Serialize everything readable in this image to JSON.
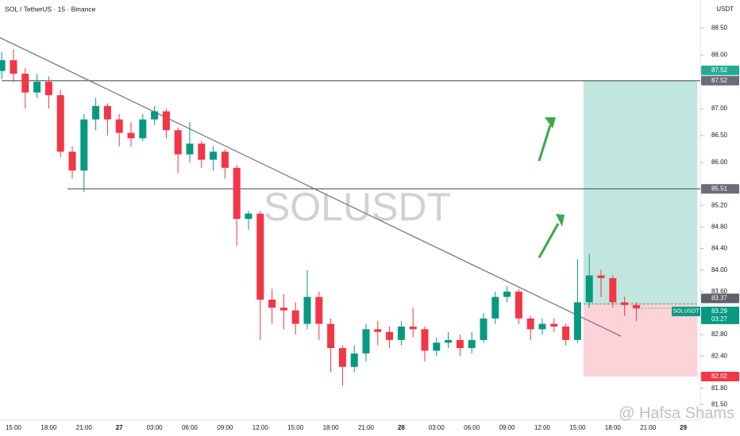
{
  "chart_data": {
    "type": "candlestick",
    "title": "SOL / TetherUS · 15 · Binance",
    "currency": "USDT",
    "watermark": "SOLUSDT",
    "credit": "@ Hafsa Shams",
    "categories": [
      null,
      "15:00",
      null,
      null,
      "18:00",
      null,
      null,
      "21:00",
      null,
      null,
      "27",
      null,
      null,
      "03:00",
      null,
      null,
      "06:00",
      null,
      null,
      "09:00",
      null,
      null,
      "12:00",
      null,
      null,
      "15:00",
      null,
      null,
      "18:00",
      null,
      null,
      "21:00",
      null,
      null,
      "28",
      null,
      null,
      "03:00",
      null,
      null,
      "06:00",
      null,
      null,
      "09:00",
      null,
      null,
      "12:00",
      null,
      null,
      "15:00",
      null,
      null,
      "18:00",
      null,
      null,
      "21:00",
      null,
      null,
      "29"
    ],
    "open": [
      87.7,
      87.9,
      87.65,
      87.3,
      87.5,
      87.25,
      86.2,
      85.85,
      86.8,
      87.05,
      86.8,
      86.55,
      86.45,
      86.8,
      86.95,
      86.6,
      86.15,
      86.35,
      86.05,
      86.2,
      85.9,
      84.95,
      85.05,
      83.45,
      83.3,
      83.25,
      83.0,
      83.5,
      83.0,
      82.55,
      82.2,
      82.45,
      82.9,
      82.85,
      82.7,
      82.95,
      82.9,
      82.5,
      82.65,
      82.7,
      82.55,
      82.7,
      83.1,
      83.5,
      83.6,
      83.1,
      82.9,
      83.0,
      82.95,
      82.7,
      83.4,
      83.9,
      83.85,
      83.4,
      83.35,
      null,
      null,
      null,
      null
    ],
    "high": [
      88.05,
      88.1,
      87.75,
      87.65,
      87.6,
      87.35,
      86.3,
      86.9,
      87.2,
      87.1,
      86.9,
      86.75,
      86.9,
      87.05,
      87.0,
      86.65,
      86.75,
      86.4,
      86.3,
      86.25,
      85.95,
      85.1,
      85.1,
      83.65,
      83.55,
      83.4,
      84.0,
      83.6,
      83.1,
      82.6,
      82.6,
      83.0,
      83.05,
      82.95,
      83.05,
      83.3,
      82.95,
      82.75,
      82.85,
      82.8,
      82.85,
      83.2,
      83.6,
      83.7,
      83.65,
      83.15,
      83.1,
      83.1,
      83.0,
      84.2,
      84.3,
      84.0,
      83.9,
      83.5,
      83.4,
      null,
      null,
      null,
      null
    ],
    "low": [
      87.55,
      87.5,
      87.0,
      87.2,
      87.0,
      86.1,
      85.7,
      85.45,
      86.6,
      86.5,
      86.3,
      86.3,
      86.4,
      86.7,
      86.45,
      85.8,
      86.0,
      85.9,
      85.85,
      85.7,
      84.45,
      84.75,
      82.7,
      83.0,
      82.9,
      82.8,
      82.9,
      82.7,
      82.1,
      81.85,
      82.1,
      82.3,
      82.6,
      82.55,
      82.6,
      82.75,
      82.3,
      82.4,
      82.55,
      82.4,
      82.45,
      82.65,
      83.0,
      83.4,
      83.0,
      82.7,
      82.8,
      82.85,
      82.6,
      82.65,
      83.3,
      83.5,
      83.3,
      83.15,
      83.05,
      null,
      null,
      null,
      null
    ],
    "close": [
      87.9,
      87.65,
      87.3,
      87.5,
      87.25,
      86.2,
      85.85,
      86.8,
      87.05,
      86.8,
      86.55,
      86.45,
      86.8,
      86.95,
      86.6,
      86.15,
      86.35,
      86.05,
      86.2,
      85.9,
      84.95,
      85.05,
      83.45,
      83.3,
      83.25,
      83.0,
      83.5,
      83.0,
      82.55,
      82.2,
      82.45,
      82.9,
      82.85,
      82.7,
      82.95,
      82.9,
      82.5,
      82.65,
      82.7,
      82.55,
      82.7,
      83.1,
      83.5,
      83.6,
      83.1,
      82.9,
      83.0,
      82.95,
      82.7,
      83.4,
      83.9,
      83.85,
      83.4,
      83.35,
      83.29,
      null,
      null,
      null,
      null
    ],
    "up_color": "#089981",
    "down_color": "#f23645",
    "ylim": [
      81.21,
      89.02
    ],
    "yticks": [
      {
        "value": 88.5,
        "label": "88.50"
      },
      {
        "value": 88,
        "label": "88.00"
      },
      {
        "value": 87,
        "label": "87.00"
      },
      {
        "value": 86.5,
        "label": "86.50"
      },
      {
        "value": 86,
        "label": "86.00"
      },
      {
        "value": 85.2,
        "label": "85.20"
      },
      {
        "value": 84.8,
        "label": "84.80"
      },
      {
        "value": 84.4,
        "label": "84.40"
      },
      {
        "value": 84,
        "label": "84.00"
      },
      {
        "value": 83.6,
        "label": "83.60"
      },
      {
        "value": 82.8,
        "label": "82.80"
      },
      {
        "value": 82.4,
        "label": "82.40"
      },
      {
        "value": 81.8,
        "label": "81.80"
      },
      {
        "value": 81.5,
        "label": "81.50"
      }
    ],
    "levels": [
      {
        "value": 87.52,
        "from": 0
      },
      {
        "value": 85.51,
        "from": 5.6
      }
    ],
    "trendline": {
      "x": [
        -0.15,
        52.7
      ],
      "y": [
        88.32,
        82.77
      ]
    },
    "position": {
      "entry": 83.37,
      "target": 87.52,
      "stop": 82.02,
      "from": 49.5,
      "to": 59.2
    },
    "symbol_label": "SOLUSDT",
    "countdown": "03:27"
  }
}
